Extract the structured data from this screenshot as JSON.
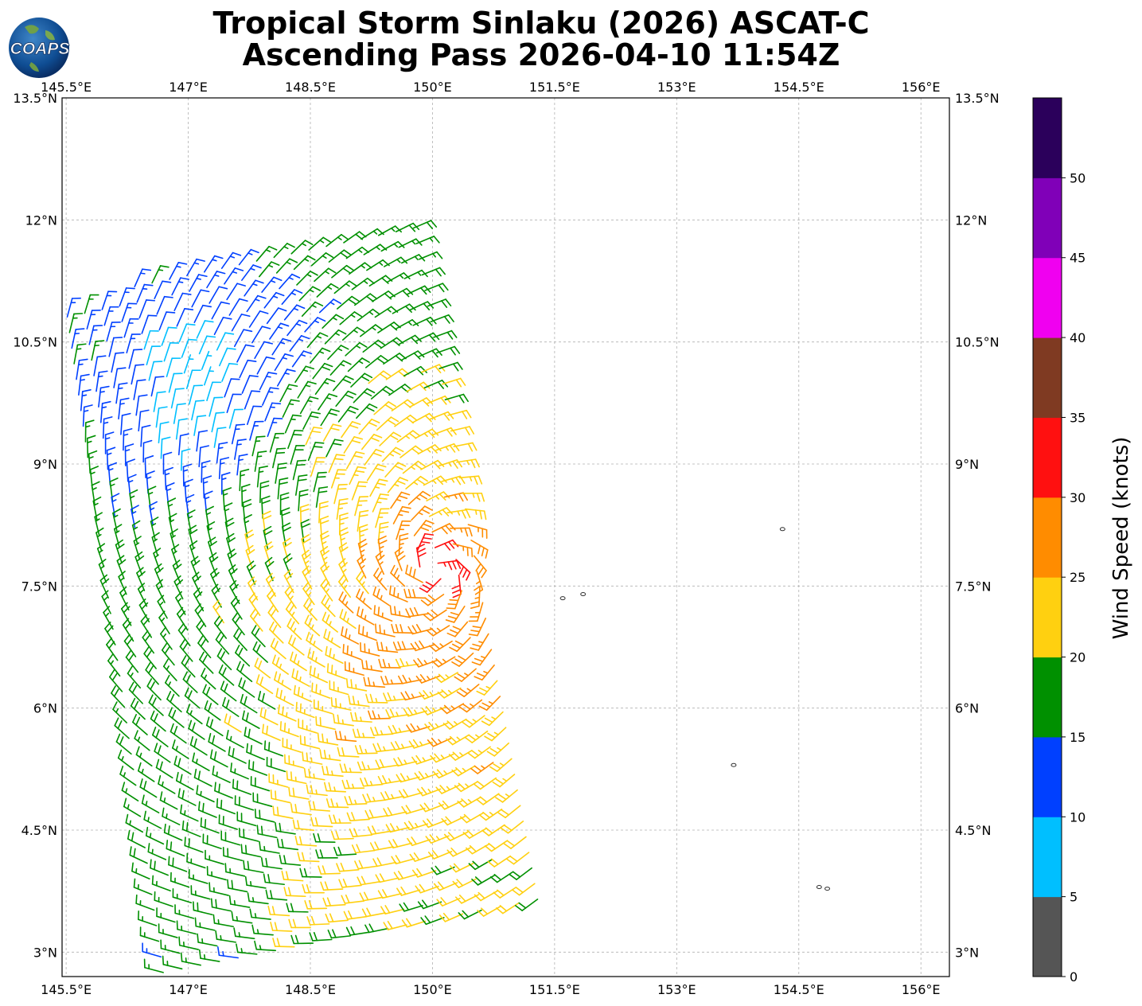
{
  "title": {
    "line1": "Tropical Storm Sinlaku (2026) ASCAT-C",
    "line2": "Ascending Pass 2026-04-10 11:54Z"
  },
  "logo": {
    "text": "COAPS",
    "icon": "globe-icon"
  },
  "axes": {
    "lon_ticks": [
      "145.5°E",
      "147°E",
      "148.5°E",
      "150°E",
      "151.5°E",
      "153°E",
      "154.5°E",
      "156°E"
    ],
    "lat_ticks": [
      "13.5°N",
      "12°N",
      "10.5°N",
      "9°N",
      "7.5°N",
      "6°N",
      "4.5°N",
      "3°N"
    ],
    "lon_range": [
      145.45,
      156.35
    ],
    "lat_range": [
      2.7,
      13.5
    ],
    "grid": true
  },
  "colorbar": {
    "label": "Wind Speed (knots)",
    "ticks": [
      "0",
      "5",
      "10",
      "15",
      "20",
      "25",
      "30",
      "35",
      "40",
      "45",
      "50"
    ],
    "bins": [
      {
        "min": 0,
        "max": 5,
        "color": "#555555"
      },
      {
        "min": 5,
        "max": 10,
        "color": "#00bfff"
      },
      {
        "min": 10,
        "max": 15,
        "color": "#0040ff"
      },
      {
        "min": 15,
        "max": 20,
        "color": "#009000"
      },
      {
        "min": 20,
        "max": 25,
        "color": "#ffd010"
      },
      {
        "min": 25,
        "max": 30,
        "color": "#ff8c00"
      },
      {
        "min": 30,
        "max": 35,
        "color": "#ff1010"
      },
      {
        "min": 35,
        "max": 40,
        "color": "#7f3a22"
      },
      {
        "min": 40,
        "max": 45,
        "color": "#f000f0"
      },
      {
        "min": 45,
        "max": 50,
        "color": "#8000b8"
      },
      {
        "min": 50,
        "max": 55,
        "color": "#2b005b"
      }
    ]
  },
  "chart_data": {
    "type": "scatter",
    "description_kind": "wind-barbs",
    "center": {
      "lon": 150.05,
      "lat": 7.7
    },
    "swath": {
      "lon_min": 145.5,
      "lon_max": 151.3,
      "lat_min": 2.7,
      "lat_max": 11.9
    },
    "islands": [
      {
        "lon": 151.6,
        "lat": 7.35
      },
      {
        "lon": 151.85,
        "lat": 7.4
      },
      {
        "lon": 154.3,
        "lat": 8.2
      },
      {
        "lon": 153.7,
        "lat": 5.3
      },
      {
        "lon": 154.75,
        "lat": 3.8
      },
      {
        "lon": 154.85,
        "lat": 3.78
      }
    ]
  }
}
